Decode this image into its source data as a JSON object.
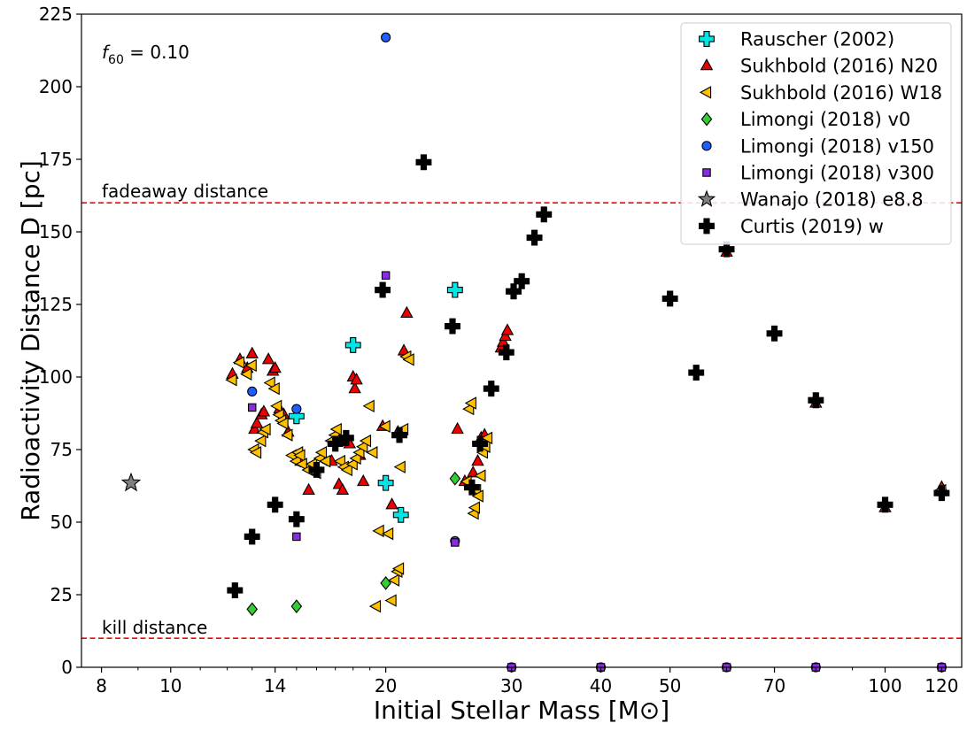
{
  "chart_data": {
    "type": "scatter",
    "title": "",
    "xlabel": "Initial Stellar Mass [M⊙]",
    "ylabel": "Radioactivity Distance D [pc]",
    "xscale": "log",
    "xlim": [
      7.5,
      128
    ],
    "ylim": [
      0,
      225
    ],
    "x_ticks": [
      8,
      10,
      14,
      20,
      30,
      40,
      50,
      70,
      100,
      120
    ],
    "y_ticks": [
      0,
      25,
      50,
      75,
      100,
      125,
      150,
      175,
      200,
      225
    ],
    "annotation": "f60 = 0.10",
    "hlines": [
      {
        "name": "fadeaway",
        "y": 160,
        "label": "fadeaway distance",
        "color": "#ff0000"
      },
      {
        "name": "kill",
        "y": 10,
        "label": "kill distance",
        "color": "#ff0000"
      }
    ],
    "legend_position": "top-right",
    "series": [
      {
        "name": "Rauscher (2002)",
        "marker": "plus",
        "color": "#00e5e5",
        "points": [
          [
            15,
            86.5
          ],
          [
            18,
            111
          ],
          [
            20,
            63.5
          ],
          [
            21,
            52.5
          ],
          [
            25,
            130
          ]
        ]
      },
      {
        "name": "Sukhbold (2016) N20",
        "marker": "triangle-up",
        "color": "#ee0000",
        "points": [
          [
            12.2,
            101
          ],
          [
            12.5,
            106
          ],
          [
            12.8,
            103
          ],
          [
            13,
            108
          ],
          [
            13.1,
            82
          ],
          [
            13.2,
            84
          ],
          [
            13.4,
            87
          ],
          [
            13.5,
            88
          ],
          [
            13.7,
            106
          ],
          [
            13.9,
            102
          ],
          [
            14,
            103
          ],
          [
            14.2,
            89
          ],
          [
            14.4,
            87
          ],
          [
            14.6,
            81
          ],
          [
            15.2,
            71
          ],
          [
            15.6,
            61
          ],
          [
            16.8,
            71
          ],
          [
            17.2,
            63
          ],
          [
            17.4,
            61
          ],
          [
            17.8,
            77
          ],
          [
            18,
            100
          ],
          [
            18.1,
            96
          ],
          [
            18.2,
            99
          ],
          [
            18.4,
            73
          ],
          [
            18.6,
            64
          ],
          [
            19.8,
            83
          ],
          [
            20.4,
            56
          ],
          [
            20.8,
            81
          ],
          [
            21.2,
            109
          ],
          [
            21.4,
            122
          ],
          [
            25.2,
            82
          ],
          [
            25.8,
            64
          ],
          [
            26.5,
            67
          ],
          [
            26.9,
            71
          ],
          [
            27.2,
            79
          ],
          [
            27.5,
            80
          ],
          [
            29,
            110
          ],
          [
            29.2,
            112
          ],
          [
            29.4,
            114
          ],
          [
            29.6,
            116
          ],
          [
            60,
            143
          ],
          [
            80,
            91
          ],
          [
            100,
            55
          ],
          [
            120,
            62
          ]
        ]
      },
      {
        "name": "Sukhbold (2016) W18",
        "marker": "triangle-left",
        "color": "#ffc000",
        "points": [
          [
            12.2,
            99
          ],
          [
            12.5,
            105
          ],
          [
            12.8,
            101
          ],
          [
            13,
            104
          ],
          [
            13.1,
            75
          ],
          [
            13.2,
            74
          ],
          [
            13.4,
            78
          ],
          [
            13.5,
            81
          ],
          [
            13.6,
            82
          ],
          [
            13.8,
            98
          ],
          [
            14,
            96
          ],
          [
            14.1,
            90
          ],
          [
            14.2,
            87
          ],
          [
            14.3,
            85
          ],
          [
            14.4,
            84
          ],
          [
            14.6,
            80
          ],
          [
            14.8,
            73
          ],
          [
            15,
            71
          ],
          [
            15.1,
            74
          ],
          [
            15.2,
            73
          ],
          [
            15.3,
            70
          ],
          [
            15.6,
            68
          ],
          [
            15.8,
            70
          ],
          [
            16,
            67
          ],
          [
            16.2,
            72
          ],
          [
            16.3,
            74
          ],
          [
            16.5,
            71
          ],
          [
            16.8,
            78
          ],
          [
            17,
            80
          ],
          [
            17.1,
            82
          ],
          [
            17.3,
            71
          ],
          [
            17.5,
            69
          ],
          [
            17.7,
            68
          ],
          [
            18,
            70
          ],
          [
            18.2,
            72
          ],
          [
            18.4,
            74
          ],
          [
            18.6,
            76
          ],
          [
            18.8,
            78
          ],
          [
            19,
            90
          ],
          [
            19.2,
            74
          ],
          [
            19.4,
            21
          ],
          [
            19.6,
            47
          ],
          [
            20,
            83
          ],
          [
            20.2,
            46
          ],
          [
            20.4,
            23
          ],
          [
            20.6,
            30
          ],
          [
            20.8,
            33
          ],
          [
            20.9,
            34
          ],
          [
            21,
            69
          ],
          [
            21.2,
            82
          ],
          [
            21.4,
            107
          ],
          [
            21.6,
            106
          ],
          [
            26,
            64
          ],
          [
            26.2,
            89
          ],
          [
            26.4,
            91
          ],
          [
            26.6,
            53
          ],
          [
            26.7,
            55
          ],
          [
            26.8,
            61
          ],
          [
            27,
            59
          ],
          [
            27.2,
            66
          ],
          [
            27.4,
            74
          ],
          [
            27.6,
            76
          ],
          [
            27.8,
            79
          ],
          [
            120,
            61
          ]
        ]
      },
      {
        "name": "Limongi (2018) v0",
        "marker": "diamond",
        "color": "#33cc33",
        "points": [
          [
            13,
            20
          ],
          [
            15,
            21
          ],
          [
            20,
            29
          ],
          [
            25,
            65
          ]
        ]
      },
      {
        "name": "Limongi (2018) v150",
        "marker": "circle",
        "color": "#1f5fff",
        "points": [
          [
            13,
            95
          ],
          [
            15,
            89
          ],
          [
            20,
            217
          ],
          [
            25,
            43.5
          ],
          [
            30,
            0
          ],
          [
            40,
            0
          ],
          [
            60,
            0
          ],
          [
            80,
            0
          ],
          [
            120,
            0
          ]
        ]
      },
      {
        "name": "Limongi (2018) v300",
        "marker": "square",
        "color": "#8a2be2",
        "points": [
          [
            13,
            89.5
          ],
          [
            15,
            45
          ],
          [
            20,
            135
          ],
          [
            25,
            43
          ],
          [
            30,
            0
          ],
          [
            40,
            0
          ],
          [
            60,
            0
          ],
          [
            80,
            0
          ],
          [
            120,
            0
          ]
        ]
      },
      {
        "name": "Wanajo (2018) e8.8",
        "marker": "star",
        "color": "#808080",
        "points": [
          [
            8.8,
            63.5
          ]
        ]
      },
      {
        "name": "Curtis (2019) w",
        "marker": "plus",
        "color": "#000000",
        "points": [
          [
            12.3,
            26.5
          ],
          [
            13,
            45
          ],
          [
            14,
            56
          ],
          [
            15,
            51
          ],
          [
            16,
            68
          ],
          [
            17,
            77
          ],
          [
            17.6,
            79
          ],
          [
            19.8,
            130
          ],
          [
            20.9,
            80
          ],
          [
            22.6,
            174
          ],
          [
            24.8,
            117.5
          ],
          [
            26.4,
            62
          ],
          [
            27.1,
            77
          ],
          [
            28.1,
            96
          ],
          [
            29.5,
            108.5
          ],
          [
            30.2,
            129.5
          ],
          [
            31,
            133
          ],
          [
            32.3,
            148
          ],
          [
            33.3,
            156
          ],
          [
            50,
            127
          ],
          [
            54.4,
            101.5
          ],
          [
            60,
            144
          ],
          [
            70,
            115
          ],
          [
            80,
            92
          ],
          [
            100,
            56
          ],
          [
            120,
            60
          ]
        ]
      }
    ]
  }
}
